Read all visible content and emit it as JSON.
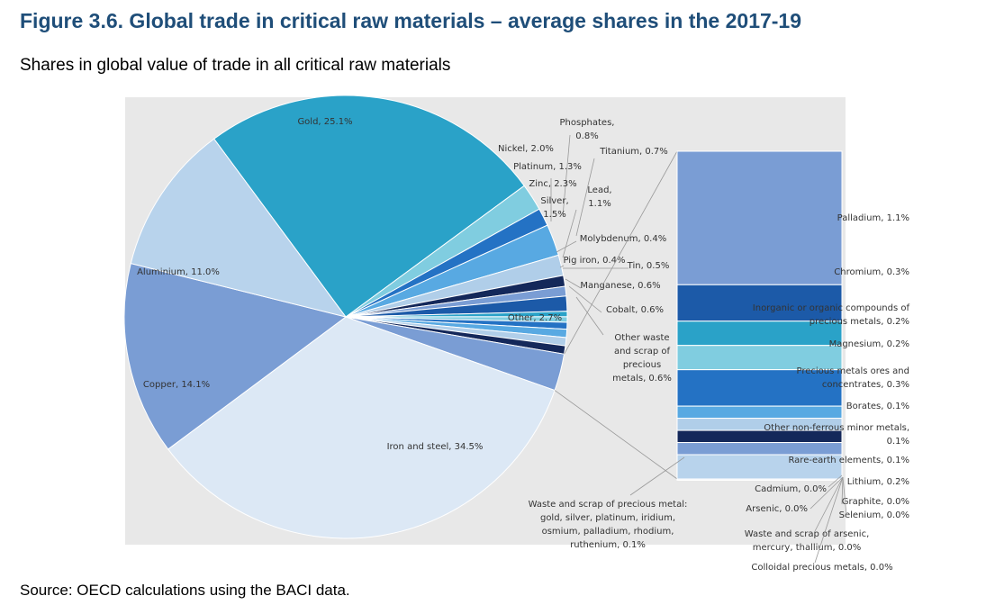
{
  "figure": {
    "title": "Figure 3.6. Global trade in critical raw materials – average shares in the 2017-19",
    "subtitle": "Shares in global value of trade in all critical raw materials",
    "source": "Source: OECD calculations using the BACI data."
  },
  "chart_data": {
    "type": "pie",
    "subtype": "bar-of-pie",
    "unit": "%",
    "slices": [
      {
        "label": "Gold, 25.1%",
        "name": "Gold",
        "value": 25.1,
        "color": "#2aa2c8"
      },
      {
        "label": "Nickel, 2.0%",
        "name": "Nickel",
        "value": 2.0,
        "color": "#80cde0"
      },
      {
        "label": "Platinum, 1.3%",
        "name": "Platinum",
        "value": 1.3,
        "color": "#2472c4"
      },
      {
        "label": "Zinc, 2.3%",
        "name": "Zinc",
        "value": 2.3,
        "color": "#58a9e2"
      },
      {
        "label": "Silver, 1.5%",
        "name": "Silver",
        "value": 1.5,
        "color": "#b0cee9"
      },
      {
        "label": "Phosphates, 0.8%",
        "name": "Phosphates",
        "value": 0.8,
        "color": "#14285a"
      },
      {
        "label": "Titanium, 0.7%",
        "name": "Titanium",
        "value": 0.7,
        "color": "#7a9dd4"
      },
      {
        "label": "Lead, 1.1%",
        "name": "Lead",
        "value": 1.1,
        "color": "#1c5aa8"
      },
      {
        "label": "Molybdenum, 0.4%",
        "name": "Molybdenum",
        "value": 0.4,
        "color": "#2aa2c8"
      },
      {
        "label": "Pig iron, 0.4%",
        "name": "Pig iron",
        "value": 0.4,
        "color": "#80cde0"
      },
      {
        "label": "Tin, 0.5%",
        "name": "Tin",
        "value": 0.5,
        "color": "#2472c4"
      },
      {
        "label": "Manganese, 0.6%",
        "name": "Manganese",
        "value": 0.6,
        "color": "#58a9e2"
      },
      {
        "label": "Cobalt, 0.6%",
        "name": "Cobalt",
        "value": 0.6,
        "color": "#b0cee9"
      },
      {
        "label": "Other waste and scrap of precious metals, 0.6%",
        "name": "Other waste and scrap of precious metals",
        "value": 0.6,
        "color": "#14285a"
      },
      {
        "label": "Other, 2.7%",
        "name": "Other",
        "value": 2.7,
        "color": "#7a9dd4"
      },
      {
        "label": "Iron and steel, 34.5%",
        "name": "Iron and steel",
        "value": 34.5,
        "color": "#dce8f5"
      },
      {
        "label": "Copper, 14.1%",
        "name": "Copper",
        "value": 14.1,
        "color": "#7a9dd4"
      },
      {
        "label": "Aluminium, 11.0%",
        "name": "Aluminium",
        "value": 11.0,
        "color": "#b8d3ec"
      }
    ],
    "other_breakdown": [
      {
        "label": "Palladium, 1.1%",
        "name": "Palladium",
        "value": 1.1,
        "color": "#7a9dd4"
      },
      {
        "label": "Chromium, 0.3%",
        "name": "Chromium",
        "value": 0.3,
        "color": "#1c5aa8"
      },
      {
        "label": "Inorganic or organic compounds of precious metals, 0.2%",
        "name": "Inorganic or organic compounds of precious metals",
        "value": 0.2,
        "color": "#2aa2c8"
      },
      {
        "label": "Magnesium, 0.2%",
        "name": "Magnesium",
        "value": 0.2,
        "color": "#80cde0"
      },
      {
        "label": "Precious metals ores and concentrates, 0.3%",
        "name": "Precious metals ores and concentrates",
        "value": 0.3,
        "color": "#2472c4"
      },
      {
        "label": "Borates, 0.1%",
        "name": "Borates",
        "value": 0.1,
        "color": "#58a9e2"
      },
      {
        "label": "Other non-ferrous minor metals, 0.1%",
        "name": "Other non-ferrous minor metals",
        "value": 0.1,
        "color": "#b0cee9"
      },
      {
        "label": "Waste and scrap of precious metal: gold, silver, platinum, iridium, osmium, palladium, rhodium, ruthenium, 0.1%",
        "name": "Waste and scrap of precious metal",
        "value": 0.1,
        "color": "#14285a"
      },
      {
        "label": "Rare-earth elements, 0.1%",
        "name": "Rare-earth elements",
        "value": 0.1,
        "color": "#7a9dd4"
      },
      {
        "label": "Lithium, 0.2%",
        "name": "Lithium",
        "value": 0.2,
        "color": "#b8d3ec"
      },
      {
        "label": "Cadmium, 0.0%",
        "name": "Cadmium",
        "value": 0.0,
        "color": "#1c5aa8"
      },
      {
        "label": "Graphite, 0.0%",
        "name": "Graphite",
        "value": 0.0,
        "color": "#2aa2c8"
      },
      {
        "label": "Arsenic, 0.0%",
        "name": "Arsenic",
        "value": 0.0,
        "color": "#80cde0"
      },
      {
        "label": "Selenium, 0.0%",
        "name": "Selenium",
        "value": 0.0,
        "color": "#2472c4"
      },
      {
        "label": "Waste and scrap of arsenic, mercury, thallium, 0.0%",
        "name": "Waste and scrap of arsenic, mercury, thallium",
        "value": 0.0,
        "color": "#58a9e2"
      },
      {
        "label": "Colloidal precious metals, 0.0%",
        "name": "Colloidal precious metals",
        "value": 0.0,
        "color": "#dce8f5"
      }
    ]
  }
}
